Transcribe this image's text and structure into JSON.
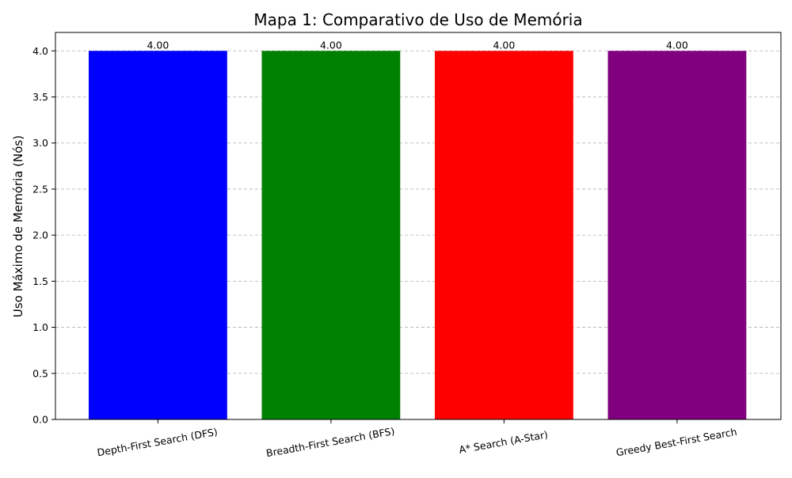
{
  "chart_data": {
    "type": "bar",
    "title": "Mapa 1: Comparativo de Uso de Memória",
    "xlabel": "",
    "ylabel": "Uso Máximo de Memória (Nós)",
    "categories": [
      "Depth-First Search (DFS)",
      "Breadth-First Search (BFS)",
      "A* Search (A-Star)",
      "Greedy Best-First Search"
    ],
    "values": [
      4.0,
      4.0,
      4.0,
      4.0
    ],
    "value_labels": [
      "4.00",
      "4.00",
      "4.00",
      "4.00"
    ],
    "colors": [
      "#0000ff",
      "#008000",
      "#ff0000",
      "#800080"
    ],
    "ylim": [
      0,
      4.2
    ],
    "yticks": [
      0.0,
      0.5,
      1.0,
      1.5,
      2.0,
      2.5,
      3.0,
      3.5,
      4.0
    ],
    "ytick_labels": [
      "0.0",
      "0.5",
      "1.0",
      "1.5",
      "2.0",
      "2.5",
      "3.0",
      "3.5",
      "4.0"
    ],
    "grid": {
      "axis": "y",
      "style": "dashed",
      "color": "#b0b0b0"
    },
    "legend": "none"
  }
}
